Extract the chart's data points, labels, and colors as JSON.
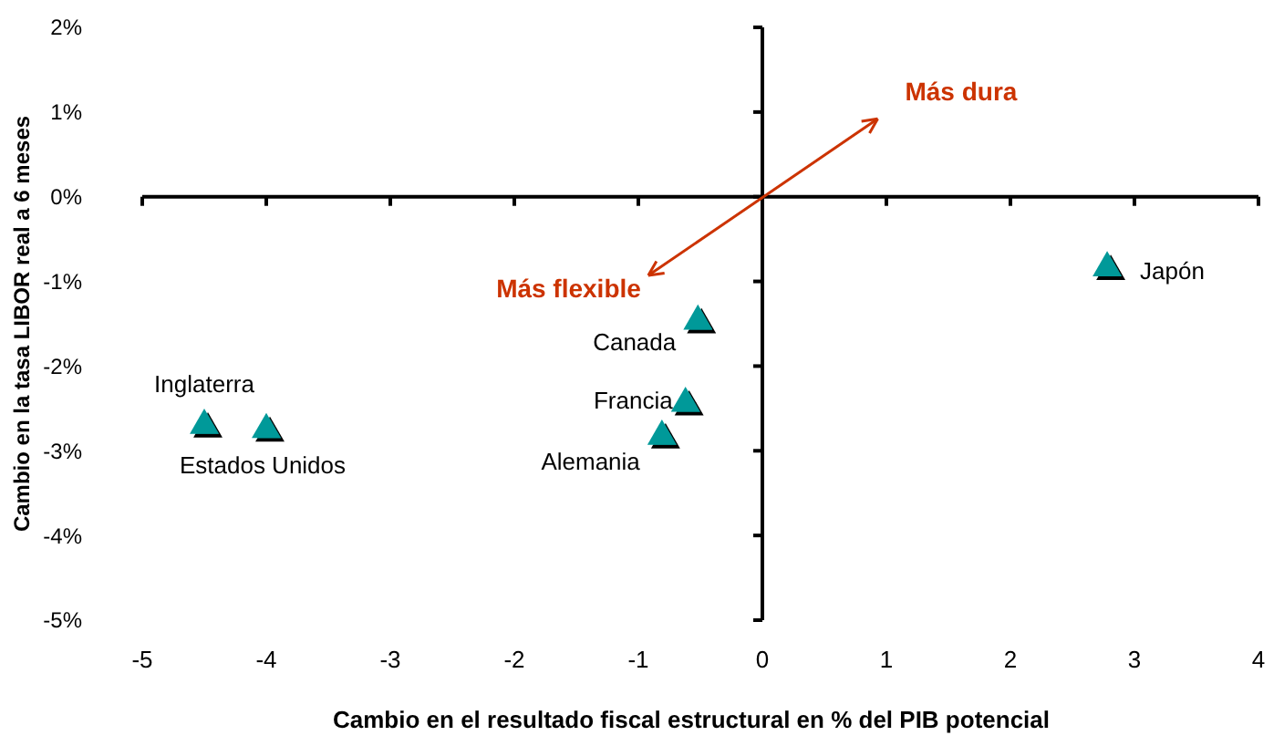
{
  "chart_data": {
    "type": "scatter",
    "xlabel": "Cambio en el resultado fiscal estructural en % del PIB potencial",
    "ylabel": "Cambio en la tasa LIBOR real a 6 meses",
    "marker": "triangle",
    "xlim": [
      -5,
      4
    ],
    "xticks": [
      -5,
      -4,
      -3,
      -2,
      -1,
      0,
      1,
      2,
      3,
      4
    ],
    "ylim": [
      -5,
      2
    ],
    "yticks": [
      {
        "value": -5,
        "label": "-5%"
      },
      {
        "value": -4,
        "label": "-4%"
      },
      {
        "value": -3,
        "label": "-3%"
      },
      {
        "value": -2,
        "label": "-2%"
      },
      {
        "value": -1,
        "label": "-1%"
      },
      {
        "value": 0,
        "label": "0%"
      },
      {
        "value": 1,
        "label": "1%"
      },
      {
        "value": 2,
        "label": "2%"
      }
    ],
    "annotations": [
      "Más dura",
      "Más flexible"
    ],
    "series": [
      {
        "name": "Inglaterra",
        "color": "#009999",
        "x": [
          -4.5
        ],
        "values": [
          -2.7
        ]
      },
      {
        "name": "Estados Unidos",
        "color": "#009999",
        "x": [
          -4.0
        ],
        "values": [
          -2.75
        ]
      },
      {
        "name": "Canada",
        "color": "#009999",
        "x": [
          -0.52
        ],
        "values": [
          -1.47
        ]
      },
      {
        "name": "Francia",
        "color": "#009999",
        "x": [
          -0.62
        ],
        "values": [
          -2.44
        ]
      },
      {
        "name": "Alemania",
        "color": "#009999",
        "x": [
          -0.81
        ],
        "values": [
          -2.83
        ]
      },
      {
        "name": "Japón",
        "color": "#009999",
        "x": [
          2.78
        ],
        "values": [
          -0.84
        ]
      }
    ]
  }
}
